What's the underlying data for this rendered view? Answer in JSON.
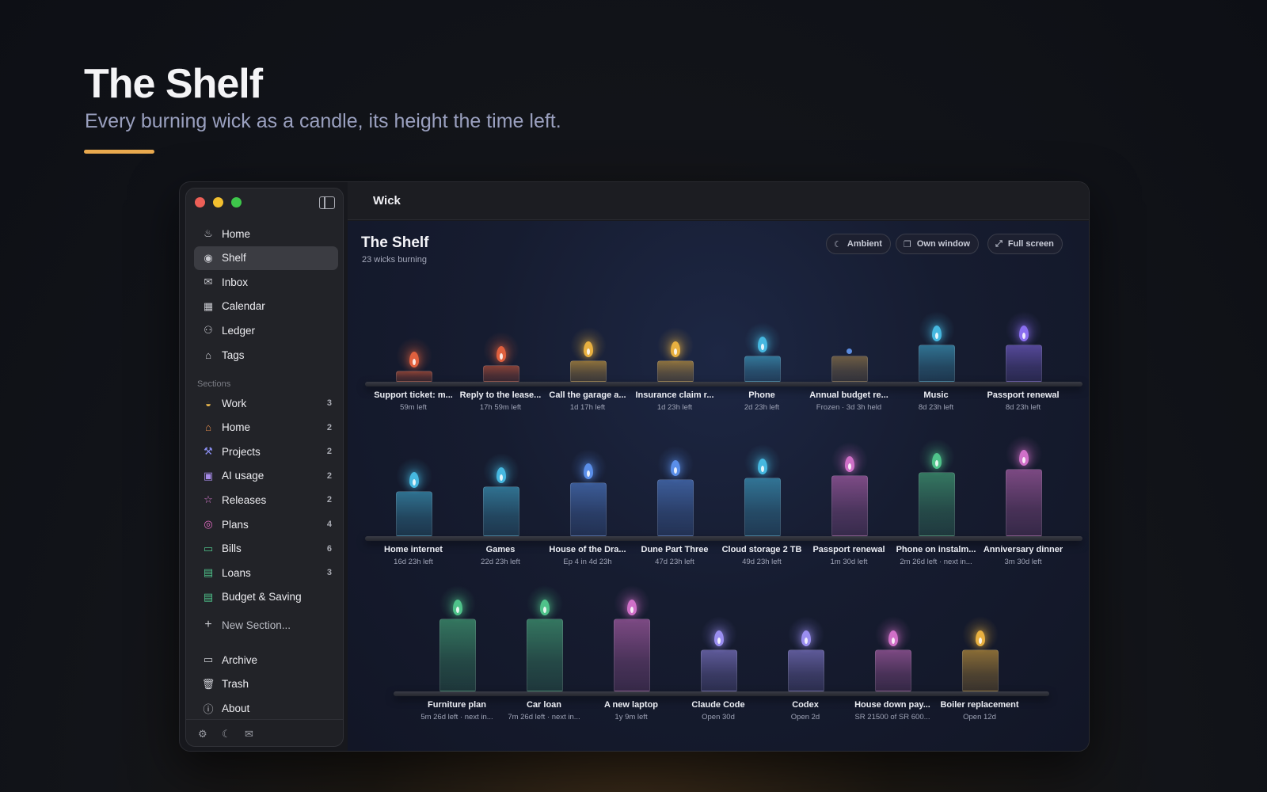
{
  "hero": {
    "title": "The Shelf",
    "subtitle": "Every burning wick as a candle, its height the time left."
  },
  "window": {
    "title": "Wick"
  },
  "sidebar": {
    "nav": [
      {
        "label": "Home",
        "icon": "flame-icon"
      },
      {
        "label": "Shelf",
        "icon": "candle-icon",
        "active": true
      },
      {
        "label": "Inbox",
        "icon": "inbox-icon"
      },
      {
        "label": "Calendar",
        "icon": "calendar-icon"
      },
      {
        "label": "Ledger",
        "icon": "people-icon"
      },
      {
        "label": "Tags",
        "icon": "tag-icon"
      }
    ],
    "sections_heading": "Sections",
    "sections": [
      {
        "label": "Work",
        "count": "3",
        "icon": "briefcase-icon",
        "color": "#e9b64e"
      },
      {
        "label": "Home",
        "count": "2",
        "icon": "house-icon",
        "color": "#e08a4a"
      },
      {
        "label": "Projects",
        "count": "2",
        "icon": "hammer-icon",
        "color": "#8a8ef0"
      },
      {
        "label": "AI usage",
        "count": "2",
        "icon": "chip-icon",
        "color": "#a78be8"
      },
      {
        "label": "Releases",
        "count": "2",
        "icon": "star-icon",
        "color": "#d87ad0"
      },
      {
        "label": "Plans",
        "count": "4",
        "icon": "target-icon",
        "color": "#e06ac0"
      },
      {
        "label": "Bills",
        "count": "6",
        "icon": "card-icon",
        "color": "#4fc28a"
      },
      {
        "label": "Loans",
        "count": "3",
        "icon": "banknote-icon",
        "color": "#4fc28a"
      },
      {
        "label": "Budget & Saving",
        "count": "",
        "icon": "money-icon",
        "color": "#4fc28a"
      }
    ],
    "new_section": "New Section...",
    "footer_nav": [
      {
        "label": "Archive",
        "icon": "archive-icon"
      },
      {
        "label": "Trash",
        "icon": "trash-icon"
      },
      {
        "label": "About",
        "icon": "info-icon"
      }
    ]
  },
  "main": {
    "title": "The Shelf",
    "subtitle": "23 wicks burning",
    "buttons": {
      "ambient": "Ambient",
      "own_window": "Own window",
      "full_screen": "Full screen"
    }
  },
  "rows": [
    [
      {
        "name": "Support ticket: m...",
        "time": "59m left",
        "fill": 0.08,
        "color": "#e0603e"
      },
      {
        "name": "Reply to the lease...",
        "time": "17h 59m left",
        "fill": 0.14,
        "color": "#e0603e"
      },
      {
        "name": "Call the garage a...",
        "time": "1d 17h left",
        "fill": 0.18,
        "color": "#e8b040"
      },
      {
        "name": "Insurance claim r...",
        "time": "1d 23h left",
        "fill": 0.18,
        "color": "#e8b040"
      },
      {
        "name": "Phone",
        "time": "2d 23h left",
        "fill": 0.22,
        "color": "#46b8e0"
      },
      {
        "name": "Annual budget re...",
        "time": "Frozen · 3d 3h held",
        "fill": 0.22,
        "color": "#b08c4e",
        "frozen": true
      },
      {
        "name": "Music",
        "time": "8d 23h left",
        "fill": 0.31,
        "color": "#46b8e0"
      },
      {
        "name": "Passport renewal",
        "time": "8d 23h left",
        "fill": 0.31,
        "color": "#8a6ef0"
      }
    ],
    [
      {
        "name": "Home internet",
        "time": "16d 23h left",
        "fill": 0.38,
        "color": "#46b8e0"
      },
      {
        "name": "Games",
        "time": "22d 23h left",
        "fill": 0.42,
        "color": "#46b8e0"
      },
      {
        "name": "House of the Dra...",
        "time": "Ep 4 in 4d 23h",
        "fill": 0.45,
        "color": "#5a8ee8"
      },
      {
        "name": "Dune Part Three",
        "time": "47d 23h left",
        "fill": 0.48,
        "color": "#5a8ee8"
      },
      {
        "name": "Cloud storage 2 TB",
        "time": "49d 23h left",
        "fill": 0.49,
        "color": "#46b8e0"
      },
      {
        "name": "Passport renewal",
        "time": "1m 30d left",
        "fill": 0.51,
        "color": "#d070c8"
      },
      {
        "name": "Phone on instalm...",
        "time": "2m 26d left · next in...",
        "fill": 0.54,
        "color": "#4fc28a"
      },
      {
        "name": "Anniversary dinner",
        "time": "3m 30d left",
        "fill": 0.57,
        "color": "#d070c8"
      }
    ],
    [
      {
        "name": "Furniture plan",
        "time": "5m 26d left · next in...",
        "fill": 0.61,
        "color": "#4fc28a"
      },
      {
        "name": "Car loan",
        "time": "7m 26d left · next in...",
        "fill": 0.61,
        "color": "#4fc28a"
      },
      {
        "name": "A new laptop",
        "time": "1y 9m left",
        "fill": 0.61,
        "color": "#d070c8"
      },
      {
        "name": "Claude Code",
        "time": "Open 30d",
        "fill": 0.35,
        "color": "#9a8ef0"
      },
      {
        "name": "Codex",
        "time": "Open 2d",
        "fill": 0.35,
        "color": "#9a8ef0"
      },
      {
        "name": "House down pay...",
        "time": "SR 21500 of SR 600...",
        "fill": 0.35,
        "color": "#d070c8"
      },
      {
        "name": "Boiler replacement",
        "time": "Open 12d",
        "fill": 0.35,
        "color": "#e8b040"
      }
    ]
  ]
}
